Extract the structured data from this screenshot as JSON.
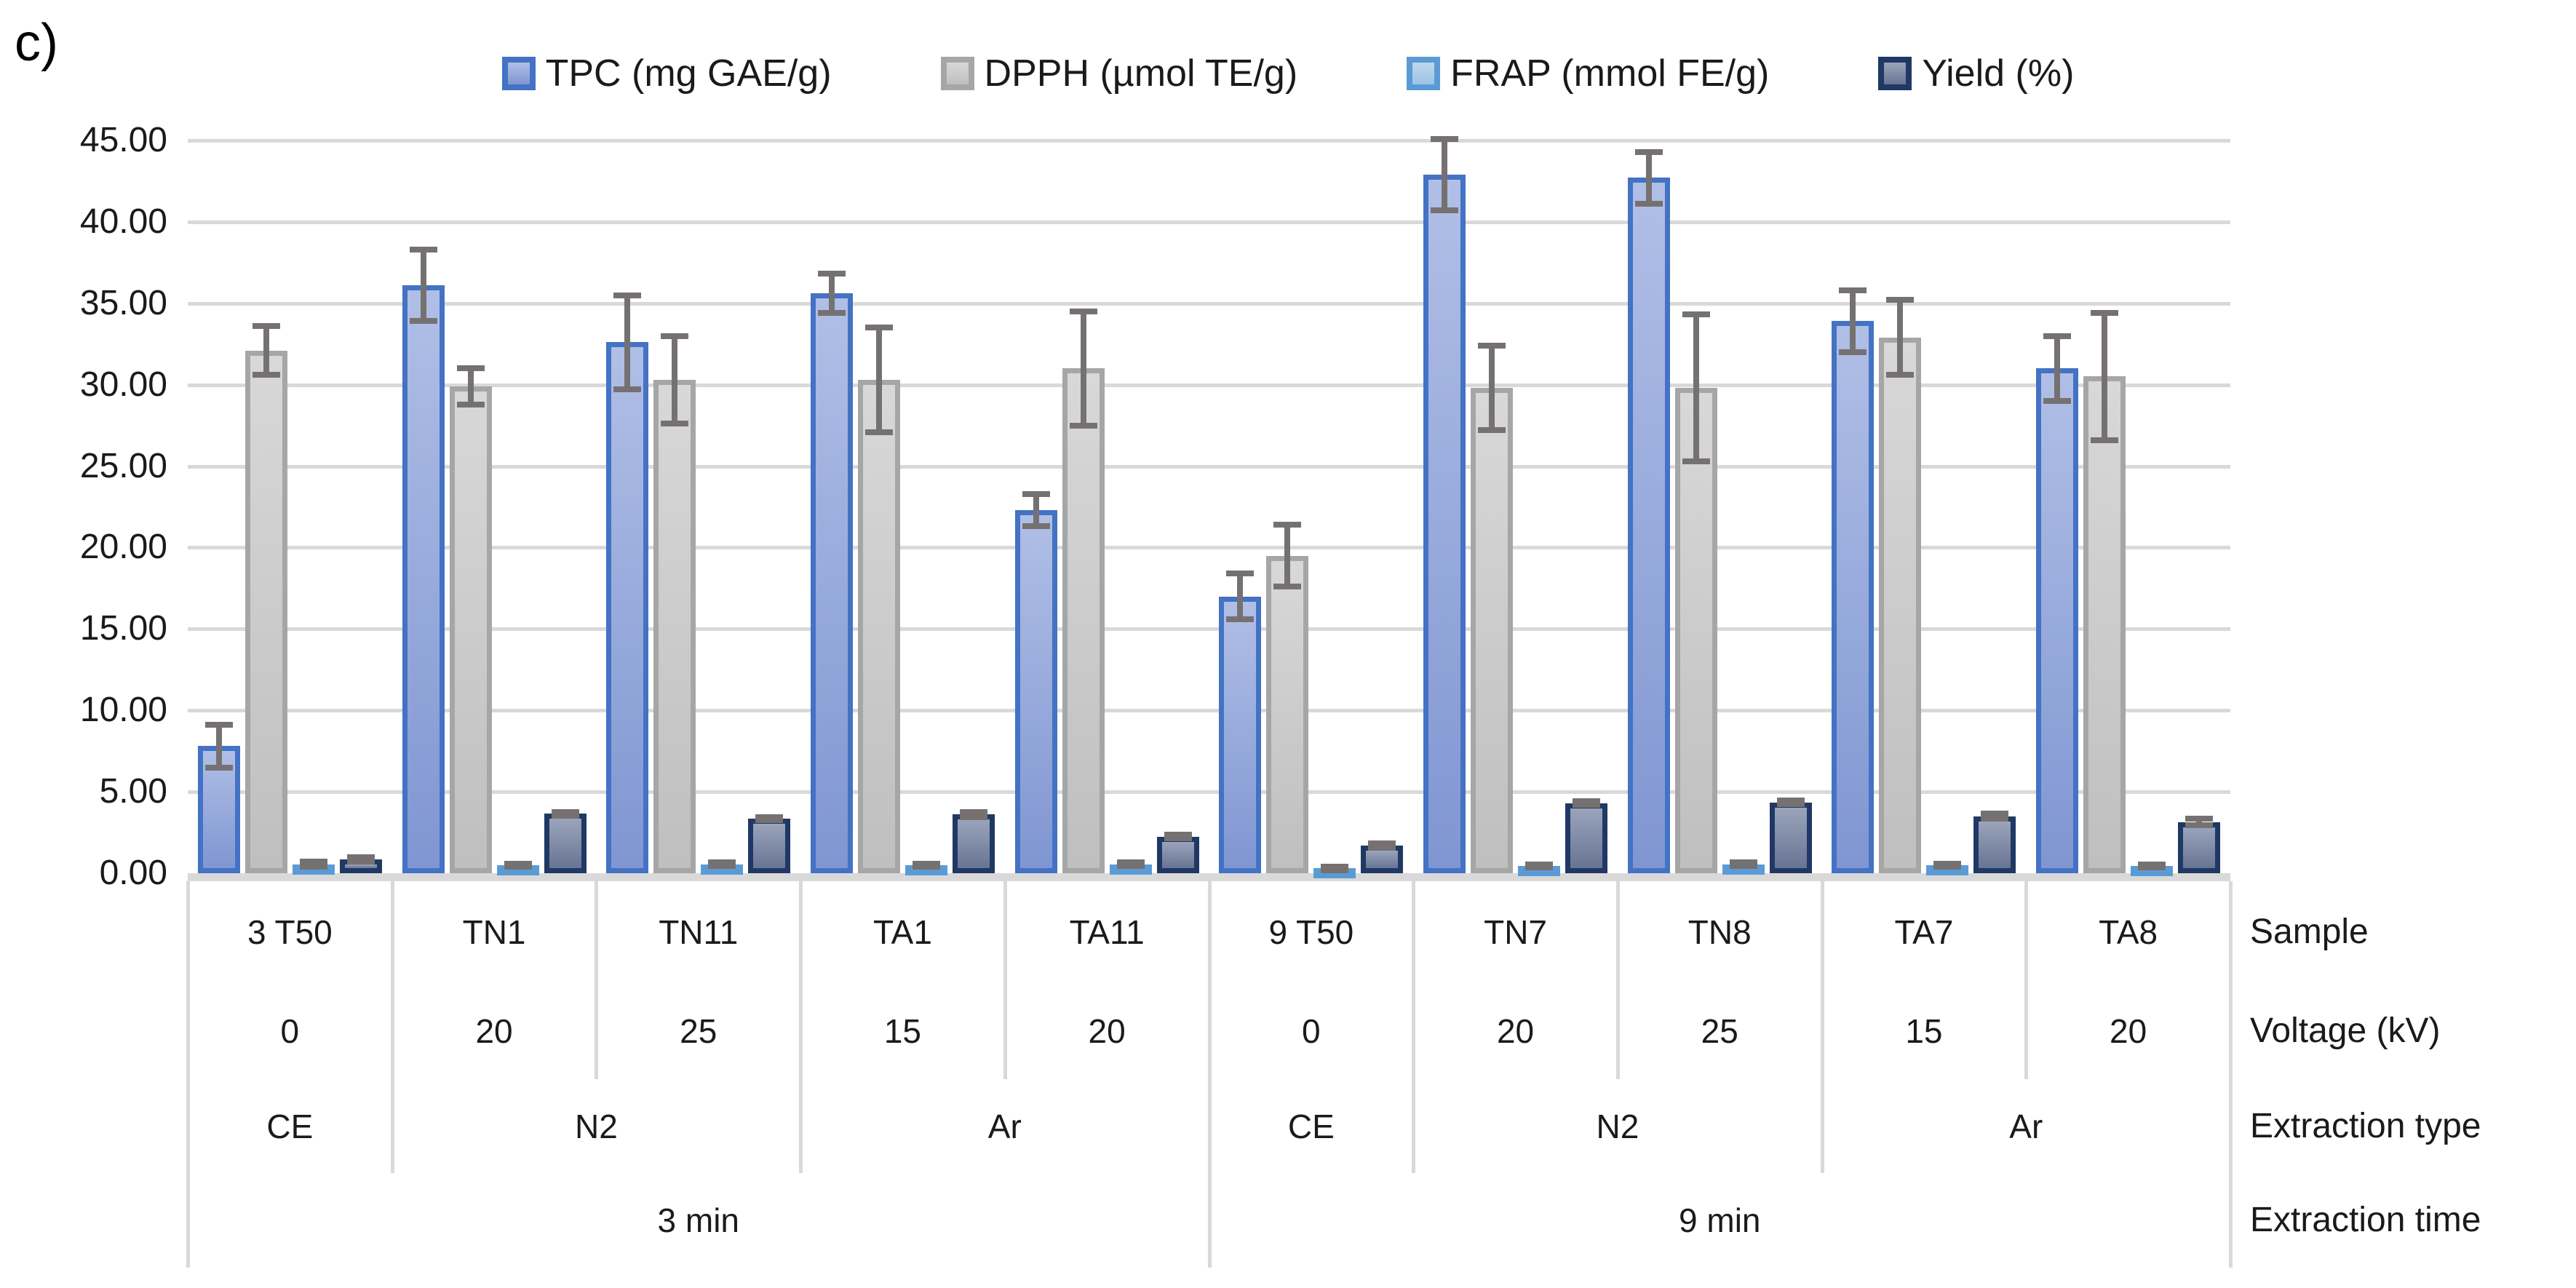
{
  "figure_label": "c)",
  "colors": {
    "gridline": "#d9d9d9",
    "error_bar": "#767171",
    "text": "#1a1a1a"
  },
  "axis_row_labels": [
    "Sample",
    "Voltage (kV)",
    "Extraction type",
    "Extraction time"
  ],
  "chart_data": {
    "type": "bar",
    "title": "",
    "ylabel": "",
    "ylim": [
      0,
      45
    ],
    "ytick_step": 5,
    "ytick_labels": [
      "0.00",
      "5.00",
      "10.00",
      "15.00",
      "20.00",
      "25.00",
      "30.00",
      "35.00",
      "40.00",
      "45.00"
    ],
    "grid": true,
    "legend_position": "top",
    "series": [
      {
        "key": "tpc",
        "label": "TPC (mg GAE/g)",
        "fill_top": "#b0bfe6",
        "fill_bottom": "#8096d2",
        "border": "#4472c4"
      },
      {
        "key": "dpph",
        "label": "DPPH (µmol TE/g)",
        "fill_top": "#d8d8d8",
        "fill_bottom": "#bfbfbf",
        "border": "#a6a6a6"
      },
      {
        "key": "frap",
        "label": "FRAP (mmol FE/g)",
        "fill_top": "#bdd7ee",
        "fill_bottom": "#9dc3e6",
        "border": "#5b9bd5"
      },
      {
        "key": "yield",
        "label": "Yield (%)",
        "fill_top": "#9aa4bb",
        "fill_bottom": "#687494",
        "border": "#1f3864"
      }
    ],
    "groups": [
      {
        "sample": "3 T50",
        "voltage": "0",
        "values": {
          "tpc": 7.8,
          "dpph": 32.1,
          "frap": 0.55,
          "yield": 0.85
        },
        "errors": {
          "tpc": 1.3,
          "dpph": 1.5,
          "frap": 0.15,
          "yield": 0.12
        }
      },
      {
        "sample": "TN1",
        "voltage": "20",
        "values": {
          "tpc": 36.1,
          "dpph": 29.9,
          "frap": 0.5,
          "yield": 3.65
        },
        "errors": {
          "tpc": 2.2,
          "dpph": 1.1,
          "frap": 0.1,
          "yield": 0.1
        }
      },
      {
        "sample": "TN11",
        "voltage": "25",
        "values": {
          "tpc": 32.6,
          "dpph": 30.3,
          "frap": 0.55,
          "yield": 3.35
        },
        "errors": {
          "tpc": 2.9,
          "dpph": 2.7,
          "frap": 0.1,
          "yield": 0.1
        }
      },
      {
        "sample": "TA1",
        "voltage": "15",
        "values": {
          "tpc": 35.6,
          "dpph": 30.3,
          "frap": 0.5,
          "yield": 3.6
        },
        "errors": {
          "tpc": 1.2,
          "dpph": 3.2,
          "frap": 0.1,
          "yield": 0.15
        }
      },
      {
        "sample": "TA11",
        "voltage": "20",
        "values": {
          "tpc": 22.3,
          "dpph": 31.0,
          "frap": 0.55,
          "yield": 2.25
        },
        "errors": {
          "tpc": 1.0,
          "dpph": 3.5,
          "frap": 0.1,
          "yield": 0.1
        }
      },
      {
        "sample": "9 T50",
        "voltage": "0",
        "values": {
          "tpc": 17.0,
          "dpph": 19.5,
          "frap": 0.3,
          "yield": 1.7
        },
        "errors": {
          "tpc": 1.4,
          "dpph": 1.9,
          "frap": 0.1,
          "yield": 0.15
        }
      },
      {
        "sample": "TN7",
        "voltage": "20",
        "values": {
          "tpc": 42.9,
          "dpph": 29.8,
          "frap": 0.45,
          "yield": 4.3
        },
        "errors": {
          "tpc": 2.2,
          "dpph": 2.6,
          "frap": 0.1,
          "yield": 0.12
        }
      },
      {
        "sample": "TN8",
        "voltage": "25",
        "values": {
          "tpc": 42.7,
          "dpph": 29.8,
          "frap": 0.55,
          "yield": 4.35
        },
        "errors": {
          "tpc": 1.6,
          "dpph": 4.5,
          "frap": 0.1,
          "yield": 0.12
        }
      },
      {
        "sample": "TA7",
        "voltage": "15",
        "values": {
          "tpc": 33.9,
          "dpph": 32.9,
          "frap": 0.5,
          "yield": 3.5
        },
        "errors": {
          "tpc": 1.9,
          "dpph": 2.3,
          "frap": 0.1,
          "yield": 0.15
        }
      },
      {
        "sample": "TA8",
        "voltage": "20",
        "values": {
          "tpc": 31.0,
          "dpph": 30.5,
          "frap": 0.45,
          "yield": 3.15
        },
        "errors": {
          "tpc": 2.0,
          "dpph": 3.9,
          "frap": 0.1,
          "yield": 0.2
        }
      }
    ],
    "extraction_type_spans": [
      {
        "label": "CE",
        "from": 0,
        "to": 1
      },
      {
        "label": "N2",
        "from": 1,
        "to": 3
      },
      {
        "label": "Ar",
        "from": 3,
        "to": 5
      },
      {
        "label": "CE",
        "from": 5,
        "to": 6
      },
      {
        "label": "N2",
        "from": 6,
        "to": 8
      },
      {
        "label": "Ar",
        "from": 8,
        "to": 10
      }
    ],
    "extraction_time_spans": [
      {
        "label": "3 min",
        "from": 0,
        "to": 5
      },
      {
        "label": "9 min",
        "from": 5,
        "to": 10
      }
    ]
  }
}
